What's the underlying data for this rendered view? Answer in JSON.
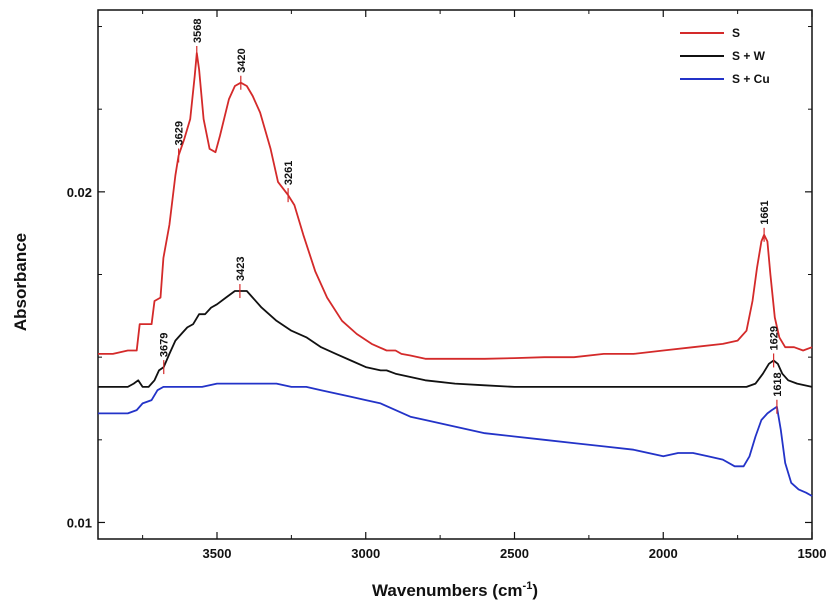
{
  "chart_data": {
    "type": "line",
    "xlabel": "Wavenumbers (cm",
    "xlabel_sup": "-1",
    "xlabel_close": ")",
    "ylabel": "Absorbance",
    "xlim": [
      3900,
      1500
    ],
    "ylim": [
      0.0095,
      0.0255
    ],
    "x_reversed": true,
    "x_ticks": [
      3500,
      3000,
      2500,
      2000,
      1500
    ],
    "x_tick_labels": [
      "3500",
      "3000",
      "2500",
      "2000",
      "1500"
    ],
    "y_ticks": [
      0.01,
      0.02
    ],
    "y_tick_labels": [
      "0.01",
      "0.02"
    ],
    "legend_position": "top-right",
    "grid": false,
    "series": [
      {
        "name": "S",
        "color": "#d42a2a",
        "points": [
          [
            3900,
            0.0151
          ],
          [
            3850,
            0.0151
          ],
          [
            3800,
            0.0152
          ],
          [
            3770,
            0.0152
          ],
          [
            3760,
            0.016
          ],
          [
            3720,
            0.016
          ],
          [
            3710,
            0.0167
          ],
          [
            3690,
            0.0168
          ],
          [
            3680,
            0.018
          ],
          [
            3660,
            0.019
          ],
          [
            3640,
            0.0205
          ],
          [
            3629,
            0.0211
          ],
          [
            3610,
            0.0216
          ],
          [
            3590,
            0.0222
          ],
          [
            3575,
            0.0235
          ],
          [
            3568,
            0.0242
          ],
          [
            3560,
            0.0237
          ],
          [
            3545,
            0.0222
          ],
          [
            3525,
            0.0213
          ],
          [
            3505,
            0.0212
          ],
          [
            3490,
            0.0217
          ],
          [
            3460,
            0.0228
          ],
          [
            3440,
            0.0232
          ],
          [
            3420,
            0.0233
          ],
          [
            3400,
            0.0232
          ],
          [
            3380,
            0.0229
          ],
          [
            3355,
            0.0224
          ],
          [
            3320,
            0.0213
          ],
          [
            3295,
            0.0203
          ],
          [
            3261,
            0.0199
          ],
          [
            3240,
            0.0196
          ],
          [
            3210,
            0.0187
          ],
          [
            3170,
            0.0176
          ],
          [
            3130,
            0.0168
          ],
          [
            3080,
            0.0161
          ],
          [
            3030,
            0.0157
          ],
          [
            2980,
            0.0154
          ],
          [
            2930,
            0.0152
          ],
          [
            2900,
            0.0152
          ],
          [
            2880,
            0.0151
          ],
          [
            2850,
            0.01505
          ],
          [
            2800,
            0.01495
          ],
          [
            2700,
            0.01495
          ],
          [
            2600,
            0.01495
          ],
          [
            2500,
            0.01497
          ],
          [
            2400,
            0.015
          ],
          [
            2300,
            0.015
          ],
          [
            2200,
            0.0151
          ],
          [
            2100,
            0.0151
          ],
          [
            2000,
            0.0152
          ],
          [
            1900,
            0.0153
          ],
          [
            1800,
            0.0154
          ],
          [
            1750,
            0.0155
          ],
          [
            1720,
            0.0158
          ],
          [
            1700,
            0.0167
          ],
          [
            1685,
            0.0177
          ],
          [
            1670,
            0.0185
          ],
          [
            1661,
            0.0187
          ],
          [
            1650,
            0.0185
          ],
          [
            1640,
            0.0175
          ],
          [
            1625,
            0.0162
          ],
          [
            1610,
            0.0156
          ],
          [
            1590,
            0.0153
          ],
          [
            1560,
            0.0153
          ],
          [
            1530,
            0.0152
          ],
          [
            1500,
            0.0153
          ]
        ]
      },
      {
        "name": "S + W",
        "color": "#111111",
        "points": [
          [
            3900,
            0.0141
          ],
          [
            3850,
            0.0141
          ],
          [
            3800,
            0.0141
          ],
          [
            3780,
            0.0142
          ],
          [
            3765,
            0.0143
          ],
          [
            3750,
            0.0141
          ],
          [
            3730,
            0.0141
          ],
          [
            3710,
            0.0143
          ],
          [
            3695,
            0.0146
          ],
          [
            3679,
            0.0147
          ],
          [
            3660,
            0.0151
          ],
          [
            3640,
            0.0155
          ],
          [
            3620,
            0.0157
          ],
          [
            3600,
            0.0159
          ],
          [
            3580,
            0.016
          ],
          [
            3560,
            0.0163
          ],
          [
            3540,
            0.0163
          ],
          [
            3520,
            0.0165
          ],
          [
            3500,
            0.0166
          ],
          [
            3470,
            0.0168
          ],
          [
            3440,
            0.017
          ],
          [
            3423,
            0.017
          ],
          [
            3400,
            0.017
          ],
          [
            3380,
            0.0168
          ],
          [
            3350,
            0.0165
          ],
          [
            3300,
            0.0161
          ],
          [
            3250,
            0.0158
          ],
          [
            3200,
            0.0156
          ],
          [
            3150,
            0.0153
          ],
          [
            3100,
            0.0151
          ],
          [
            3050,
            0.0149
          ],
          [
            3000,
            0.0147
          ],
          [
            2950,
            0.0146
          ],
          [
            2930,
            0.0146
          ],
          [
            2900,
            0.0145
          ],
          [
            2850,
            0.0144
          ],
          [
            2800,
            0.0143
          ],
          [
            2700,
            0.0142
          ],
          [
            2600,
            0.01415
          ],
          [
            2500,
            0.0141
          ],
          [
            2400,
            0.0141
          ],
          [
            2300,
            0.0141
          ],
          [
            2200,
            0.0141
          ],
          [
            2100,
            0.0141
          ],
          [
            2000,
            0.0141
          ],
          [
            1900,
            0.0141
          ],
          [
            1800,
            0.0141
          ],
          [
            1720,
            0.0141
          ],
          [
            1690,
            0.0142
          ],
          [
            1665,
            0.0145
          ],
          [
            1645,
            0.0148
          ],
          [
            1629,
            0.0149
          ],
          [
            1615,
            0.0148
          ],
          [
            1600,
            0.0145
          ],
          [
            1580,
            0.0143
          ],
          [
            1550,
            0.0142
          ],
          [
            1500,
            0.0141
          ]
        ]
      },
      {
        "name": "S + Cu",
        "color": "#2333c8",
        "points": [
          [
            3900,
            0.0133
          ],
          [
            3850,
            0.0133
          ],
          [
            3800,
            0.0133
          ],
          [
            3770,
            0.0134
          ],
          [
            3750,
            0.0136
          ],
          [
            3720,
            0.0137
          ],
          [
            3700,
            0.014
          ],
          [
            3680,
            0.0141
          ],
          [
            3650,
            0.0141
          ],
          [
            3600,
            0.0141
          ],
          [
            3550,
            0.0141
          ],
          [
            3500,
            0.0142
          ],
          [
            3450,
            0.0142
          ],
          [
            3400,
            0.0142
          ],
          [
            3350,
            0.0142
          ],
          [
            3300,
            0.0142
          ],
          [
            3250,
            0.0141
          ],
          [
            3200,
            0.0141
          ],
          [
            3150,
            0.014
          ],
          [
            3100,
            0.0139
          ],
          [
            3050,
            0.0138
          ],
          [
            3000,
            0.0137
          ],
          [
            2950,
            0.0136
          ],
          [
            2900,
            0.0134
          ],
          [
            2850,
            0.0132
          ],
          [
            2800,
            0.0131
          ],
          [
            2700,
            0.0129
          ],
          [
            2600,
            0.0127
          ],
          [
            2500,
            0.0126
          ],
          [
            2400,
            0.0125
          ],
          [
            2300,
            0.0124
          ],
          [
            2200,
            0.0123
          ],
          [
            2100,
            0.0122
          ],
          [
            2000,
            0.012
          ],
          [
            1950,
            0.0121
          ],
          [
            1900,
            0.0121
          ],
          [
            1850,
            0.012
          ],
          [
            1800,
            0.0119
          ],
          [
            1760,
            0.0117
          ],
          [
            1730,
            0.0117
          ],
          [
            1710,
            0.012
          ],
          [
            1690,
            0.0126
          ],
          [
            1670,
            0.0131
          ],
          [
            1650,
            0.0133
          ],
          [
            1635,
            0.0134
          ],
          [
            1618,
            0.0135
          ],
          [
            1605,
            0.0128
          ],
          [
            1590,
            0.0118
          ],
          [
            1570,
            0.0112
          ],
          [
            1545,
            0.011
          ],
          [
            1520,
            0.0109
          ],
          [
            1500,
            0.0108
          ]
        ]
      }
    ],
    "annotations": [
      {
        "label": "3568",
        "x": 3568,
        "y": 0.0242,
        "color": "#d42a2a"
      },
      {
        "label": "3629",
        "x": 3629,
        "y": 0.0211,
        "color": "#d42a2a"
      },
      {
        "label": "3420",
        "x": 3420,
        "y": 0.0233,
        "color": "#d42a2a"
      },
      {
        "label": "3261",
        "x": 3261,
        "y": 0.0199,
        "color": "#d42a2a"
      },
      {
        "label": "1661",
        "x": 1661,
        "y": 0.0187,
        "color": "#d42a2a"
      },
      {
        "label": "3423",
        "x": 3423,
        "y": 0.017,
        "color": "#d42a2a"
      },
      {
        "label": "3679",
        "x": 3679,
        "y": 0.0147,
        "color": "#d42a2a"
      },
      {
        "label": "1629",
        "x": 1629,
        "y": 0.0149,
        "color": "#d42a2a"
      },
      {
        "label": "1618",
        "x": 1618,
        "y": 0.0135,
        "color": "#d42a2a"
      }
    ]
  }
}
